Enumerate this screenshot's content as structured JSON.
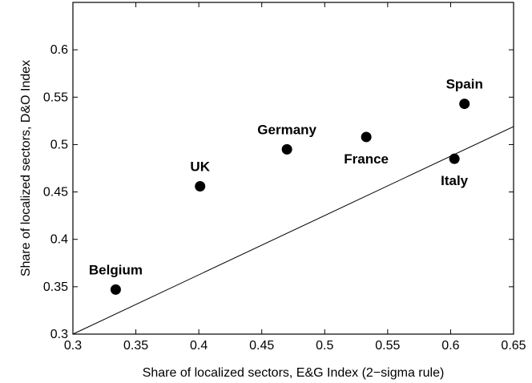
{
  "chart_data": {
    "type": "scatter",
    "title": "",
    "xlabel": "Share of localized sectors, E&G Index (2−sigma rule)",
    "ylabel": "Share of localized sectors, D&O Index",
    "xlim": [
      0.3,
      0.65
    ],
    "ylim": [
      0.3,
      0.65
    ],
    "xticks": [
      "0.3",
      "0.35",
      "0.4",
      "0.45",
      "0.5",
      "0.55",
      "0.6",
      "0.65"
    ],
    "yticks": [
      "0.3",
      "0.35",
      "0.4",
      "0.45",
      "0.5",
      "0.55",
      "0.6"
    ],
    "grid": false,
    "marker_color": "#000000",
    "points": [
      {
        "label": "Belgium",
        "x": 0.334,
        "y": 0.347,
        "label_pos": "above"
      },
      {
        "label": "UK",
        "x": 0.401,
        "y": 0.456,
        "label_pos": "above"
      },
      {
        "label": "Germany",
        "x": 0.47,
        "y": 0.495,
        "label_pos": "above"
      },
      {
        "label": "France",
        "x": 0.533,
        "y": 0.508,
        "label_pos": "below"
      },
      {
        "label": "Spain",
        "x": 0.611,
        "y": 0.543,
        "label_pos": "above"
      },
      {
        "label": "Italy",
        "x": 0.603,
        "y": 0.485,
        "label_pos": "below"
      }
    ],
    "reference_line": {
      "from": [
        0.3,
        0.3
      ],
      "to": [
        0.65,
        0.519
      ]
    }
  }
}
